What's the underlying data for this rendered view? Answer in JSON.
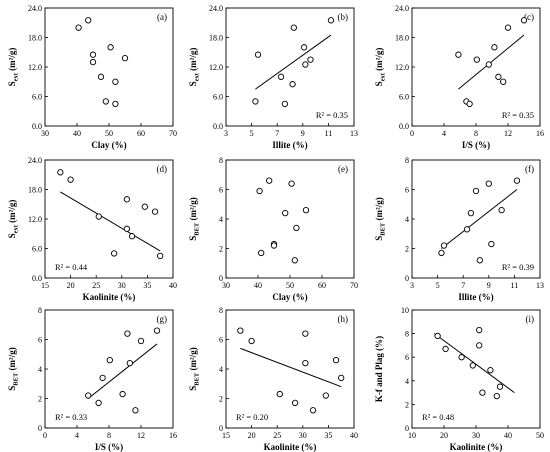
{
  "chart_data": [
    {
      "id": "a",
      "type": "scatter",
      "panel_label": "(a)",
      "xlabel": "Clay (%)",
      "ylabel_main": "S",
      "ylabel_sub": "ext",
      "ylabel_unit": " (m²/g)",
      "xlim": [
        30,
        70
      ],
      "ylim": [
        0,
        24
      ],
      "xticks": [
        "30",
        "40",
        "50",
        "60",
        "70"
      ],
      "yticks": [
        "0.0",
        "6.0",
        "12.0",
        "18.0",
        "24.0"
      ],
      "x": [
        40.5,
        43.5,
        45,
        45,
        47.5,
        49,
        50.5,
        52,
        52,
        55
      ],
      "y": [
        20,
        21.5,
        14.5,
        13,
        10,
        5,
        16,
        9,
        4.5,
        13.8
      ],
      "trend": null,
      "r2": ""
    },
    {
      "id": "b",
      "type": "scatter",
      "panel_label": "(b)",
      "xlabel": "Illite (%)",
      "ylabel_main": "S",
      "ylabel_sub": "ext",
      "ylabel_unit": " (m²/g)",
      "xlim": [
        3,
        13
      ],
      "ylim": [
        0,
        24
      ],
      "xticks": [
        "3",
        "5",
        "7",
        "9",
        "11",
        "13"
      ],
      "yticks": [
        "0.0",
        "6.0",
        "12.0",
        "18.0",
        "24.0"
      ],
      "x": [
        5.3,
        5.5,
        7.3,
        7.6,
        8.2,
        8.3,
        9.1,
        9.2,
        9.6,
        11.2
      ],
      "y": [
        5,
        14.5,
        10,
        4.5,
        8.5,
        20,
        16,
        12.5,
        13.5,
        21.5
      ],
      "trend": [
        [
          5.3,
          7.5
        ],
        [
          11.2,
          18.5
        ]
      ],
      "r2": "R² = 0.35"
    },
    {
      "id": "c",
      "type": "scatter",
      "panel_label": "(c)",
      "xlabel": "I/S (%)",
      "ylabel_main": "S",
      "ylabel_sub": "ext",
      "ylabel_unit": " (m²/g)",
      "xlim": [
        0,
        16
      ],
      "ylim": [
        0,
        24
      ],
      "xticks": [
        "0",
        "4",
        "8",
        "12",
        "16"
      ],
      "yticks": [
        "0.0",
        "6.0",
        "12.0",
        "18.0",
        "24.0"
      ],
      "x": [
        5.8,
        6.8,
        7.2,
        8.1,
        9.6,
        10.3,
        10.8,
        11.4,
        12,
        14
      ],
      "y": [
        14.5,
        5,
        4.5,
        13.5,
        12.5,
        16,
        10,
        9,
        20,
        21.5
      ],
      "trend": [
        [
          5.8,
          7.5
        ],
        [
          14,
          18.5
        ]
      ],
      "r2": "R² = 0.35"
    },
    {
      "id": "d",
      "type": "scatter",
      "panel_label": "(d)",
      "xlabel": "Kaolinite (%)",
      "ylabel_main": "S",
      "ylabel_sub": "ext",
      "ylabel_unit": " (m²/g)",
      "xlim": [
        15,
        40
      ],
      "ylim": [
        0,
        24
      ],
      "xticks": [
        "15",
        "20",
        "25",
        "30",
        "35",
        "40"
      ],
      "yticks": [
        "0.0",
        "6.0",
        "12.0",
        "18.0",
        "24.0"
      ],
      "x": [
        18,
        20,
        25.5,
        28.5,
        31,
        31,
        32,
        34.5,
        36.5,
        37.5
      ],
      "y": [
        21.5,
        20,
        12.5,
        5,
        16,
        10,
        8.5,
        14.5,
        13.5,
        4.5
      ],
      "trend": [
        [
          18,
          17.5
        ],
        [
          37.5,
          5.5
        ]
      ],
      "r2": "R² = 0.44"
    },
    {
      "id": "e",
      "type": "scatter",
      "panel_label": "(e)",
      "xlabel": "Clay (%)",
      "ylabel_main": "S",
      "ylabel_sub": "BET",
      "ylabel_unit": " (m²/g)",
      "xlim": [
        30,
        70
      ],
      "ylim": [
        0,
        8
      ],
      "xticks": [
        "30",
        "40",
        "50",
        "60",
        "70"
      ],
      "yticks": [
        "0",
        "2",
        "4",
        "6",
        "8"
      ],
      "x": [
        40.5,
        41,
        43.5,
        45,
        45,
        48.5,
        50.5,
        51.5,
        52,
        55
      ],
      "y": [
        5.9,
        1.7,
        6.6,
        2.3,
        2.2,
        4.4,
        6.4,
        1.2,
        3.4,
        4.6
      ],
      "trend": null,
      "r2": ""
    },
    {
      "id": "f",
      "type": "scatter",
      "panel_label": "(f)",
      "xlabel": "Illite (%)",
      "ylabel_main": "S",
      "ylabel_sub": "BET",
      "ylabel_unit": " (m²/g)",
      "xlim": [
        3,
        13
      ],
      "ylim": [
        0,
        8
      ],
      "xticks": [
        "3",
        "5",
        "7",
        "9",
        "11",
        "13"
      ],
      "yticks": [
        "0",
        "2",
        "4",
        "6",
        "8"
      ],
      "x": [
        5.3,
        5.5,
        7.3,
        7.6,
        8,
        8.3,
        9,
        9.2,
        10,
        11.2
      ],
      "y": [
        1.7,
        2.2,
        3.3,
        4.4,
        5.9,
        1.2,
        6.4,
        2.3,
        4.6,
        6.6
      ],
      "trend": [
        [
          5.3,
          2.0
        ],
        [
          11.2,
          6.0
        ]
      ],
      "r2": "R² = 0.39"
    },
    {
      "id": "g",
      "type": "scatter",
      "panel_label": "(g)",
      "xlabel": "I/S (%)",
      "ylabel_main": "S",
      "ylabel_sub": "BET",
      "ylabel_unit": " (m²/g)",
      "xlim": [
        0,
        16
      ],
      "ylim": [
        0,
        8
      ],
      "xticks": [
        "0",
        "4",
        "8",
        "12",
        "16"
      ],
      "yticks": [
        "0",
        "2",
        "4",
        "6",
        "8"
      ],
      "x": [
        5.4,
        6.7,
        7.2,
        8.1,
        9.7,
        10.3,
        10.6,
        11.3,
        12,
        14
      ],
      "y": [
        2.2,
        1.7,
        3.4,
        4.6,
        2.3,
        6.4,
        4.4,
        1.2,
        5.9,
        6.6
      ],
      "trend": [
        [
          5.4,
          2.0
        ],
        [
          14,
          5.7
        ]
      ],
      "r2": "R² = 0.33"
    },
    {
      "id": "h",
      "type": "scatter",
      "panel_label": "(h)",
      "xlabel": "Kaolinite (%)",
      "ylabel_main": "S",
      "ylabel_sub": "BET",
      "ylabel_unit": " (m²/g)",
      "xlim": [
        15,
        40
      ],
      "ylim": [
        0,
        8
      ],
      "xticks": [
        "15",
        "20",
        "25",
        "30",
        "35",
        "40"
      ],
      "yticks": [
        "0",
        "2",
        "4",
        "6",
        "8"
      ],
      "x": [
        17.8,
        20,
        25.5,
        28.5,
        30.5,
        30.5,
        32,
        34.5,
        36.5,
        37.5
      ],
      "y": [
        6.6,
        5.9,
        2.3,
        1.7,
        4.4,
        6.4,
        1.2,
        2.2,
        4.6,
        3.4
      ],
      "trend": [
        [
          17.8,
          5.4
        ],
        [
          37.5,
          2.8
        ]
      ],
      "r2": "R² = 0.20"
    },
    {
      "id": "i",
      "type": "scatter",
      "panel_label": "(i)",
      "xlabel": "Kaolinite (%)",
      "ylabel_main": "K-f and Plag (%)",
      "ylabel_sub": "",
      "ylabel_unit": "",
      "xlim": [
        10,
        50
      ],
      "ylim": [
        0,
        10
      ],
      "xticks": [
        "10",
        "20",
        "30",
        "40",
        "50"
      ],
      "yticks": [
        "0",
        "2",
        "4",
        "6",
        "8",
        "10"
      ],
      "x": [
        18,
        20.5,
        25.5,
        29,
        31,
        31,
        32,
        34.5,
        36.5,
        37.5
      ],
      "y": [
        7.8,
        6.7,
        6,
        5.3,
        8.3,
        7,
        3,
        4.9,
        2.7,
        3.5
      ],
      "trend": [
        [
          17,
          8.0
        ],
        [
          42,
          3.0
        ]
      ],
      "r2": "R² = 0.48"
    }
  ]
}
